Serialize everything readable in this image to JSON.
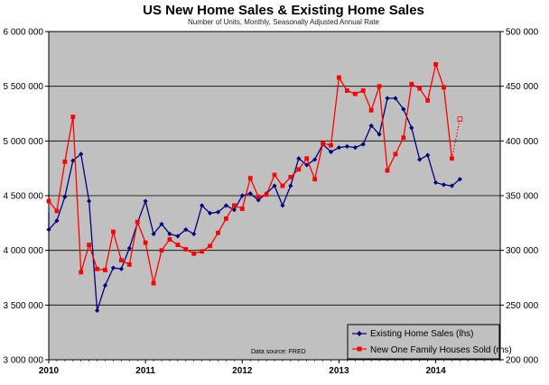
{
  "chart_data": {
    "type": "line",
    "title": "US New Home Sales & Existing Home Sales",
    "subtitle": "Number of Units, Monthly, Seasonally Adjusted Annual Rate",
    "source": "Data source: FRED",
    "x_tick_labels": [
      "2010",
      "2011",
      "2012",
      "2013",
      "2014"
    ],
    "x_range": [
      "2010-01",
      "2014-09"
    ],
    "y_left": {
      "range": [
        3000000,
        6000000
      ],
      "tick_labels": [
        "3 000 000",
        "3 500 000",
        "4 000 000",
        "4 500 000",
        "5 000 000",
        "5 500 000",
        "6 000 000"
      ],
      "tick_values": [
        3000000,
        3500000,
        4000000,
        4500000,
        5000000,
        5500000,
        6000000
      ]
    },
    "y_right": {
      "range": [
        200000,
        500000
      ],
      "tick_labels": [
        "200 000",
        "250 000",
        "300 000",
        "350 000",
        "400 000",
        "450 000",
        "500 000"
      ],
      "tick_values": [
        200000,
        250000,
        300000,
        350000,
        400000,
        450000,
        500000
      ]
    },
    "grid": true,
    "legend_position": "bottom-right",
    "series": [
      {
        "name": "Existing Home Sales (lhs)",
        "axis": "left",
        "color": "#00007f",
        "marker": "diamond",
        "x": [
          "2010-01",
          "2010-02",
          "2010-03",
          "2010-04",
          "2010-05",
          "2010-06",
          "2010-07",
          "2010-08",
          "2010-09",
          "2010-10",
          "2010-11",
          "2010-12",
          "2011-01",
          "2011-02",
          "2011-03",
          "2011-04",
          "2011-05",
          "2011-06",
          "2011-07",
          "2011-08",
          "2011-09",
          "2011-10",
          "2011-11",
          "2011-12",
          "2012-01",
          "2012-02",
          "2012-03",
          "2012-04",
          "2012-05",
          "2012-06",
          "2012-07",
          "2012-08",
          "2012-09",
          "2012-10",
          "2012-11",
          "2012-12",
          "2013-01",
          "2013-02",
          "2013-03",
          "2013-04",
          "2013-05",
          "2013-06",
          "2013-07",
          "2013-08",
          "2013-09",
          "2013-10",
          "2013-11",
          "2013-12",
          "2014-01",
          "2014-02",
          "2014-03",
          "2014-04"
        ],
        "values": [
          4190000,
          4270000,
          4490000,
          4820000,
          4880000,
          4450000,
          3450000,
          3680000,
          3840000,
          3830000,
          4020000,
          4250000,
          4450000,
          4150000,
          4240000,
          4150000,
          4130000,
          4190000,
          4150000,
          4410000,
          4340000,
          4350000,
          4410000,
          4370000,
          4500000,
          4520000,
          4460000,
          4520000,
          4590000,
          4410000,
          4590000,
          4840000,
          4780000,
          4830000,
          4970000,
          4900000,
          4940000,
          4950000,
          4940000,
          4970000,
          5140000,
          5060000,
          5390000,
          5390000,
          5290000,
          5120000,
          4830000,
          4870000,
          4620000,
          4600000,
          4590000,
          4650000
        ],
        "line_start_off_chart_left": 4350000
      },
      {
        "name": "New One Family Houses Sold (rhs)",
        "axis": "right",
        "color": "#ff0000",
        "marker": "square",
        "x": [
          "2010-01",
          "2010-02",
          "2010-03",
          "2010-04",
          "2010-05",
          "2010-06",
          "2010-07",
          "2010-08",
          "2010-09",
          "2010-10",
          "2010-11",
          "2010-12",
          "2011-01",
          "2011-02",
          "2011-03",
          "2011-04",
          "2011-05",
          "2011-06",
          "2011-07",
          "2011-08",
          "2011-09",
          "2011-10",
          "2011-11",
          "2011-12",
          "2012-01",
          "2012-02",
          "2012-03",
          "2012-04",
          "2012-05",
          "2012-06",
          "2012-07",
          "2012-08",
          "2012-09",
          "2012-10",
          "2012-11",
          "2012-12",
          "2013-01",
          "2013-02",
          "2013-03",
          "2013-04",
          "2013-05",
          "2013-06",
          "2013-07",
          "2013-08",
          "2013-09",
          "2013-10",
          "2013-11",
          "2013-12",
          "2014-01",
          "2014-02",
          "2014-03"
        ],
        "values": [
          345000,
          336000,
          381000,
          422000,
          280000,
          305000,
          283000,
          282000,
          317000,
          291000,
          287000,
          326000,
          307000,
          270000,
          300000,
          310000,
          305000,
          301000,
          297000,
          299000,
          304000,
          316000,
          329000,
          341000,
          338000,
          366000,
          349000,
          351000,
          369000,
          359000,
          367000,
          374000,
          384000,
          365000,
          398000,
          396000,
          458000,
          446000,
          443000,
          446000,
          428000,
          450000,
          373000,
          388000,
          403000,
          452000,
          448000,
          437000,
          470000,
          449000,
          384000
        ],
        "projection": {
          "from": "2014-03",
          "to": "2014-04",
          "from_value": 384000,
          "to_value": 420000,
          "style": "dotted",
          "marker": "open-square"
        }
      }
    ]
  }
}
